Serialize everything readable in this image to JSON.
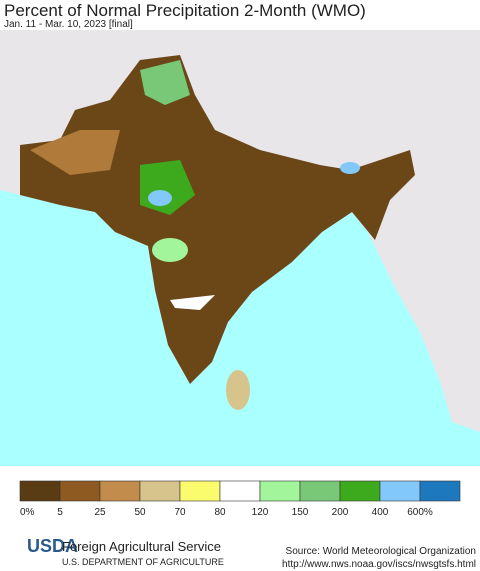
{
  "header": {
    "title": "Percent of Normal Precipitation 2-Month (WMO)",
    "subtitle": "Jan. 11 - Mar. 10, 2023 [final]"
  },
  "legend": {
    "colors": [
      "#5a3c14",
      "#8f5a22",
      "#c28c4c",
      "#d6c48c",
      "#fbfb6e",
      "#ffffff",
      "#a2f59a",
      "#78c878",
      "#3caa1c",
      "#82c8fa",
      "#1e78be"
    ],
    "labels": [
      "0%",
      "5",
      "25",
      "50",
      "70",
      "80",
      "120",
      "150",
      "200",
      "400",
      "600%"
    ]
  },
  "footer": {
    "agency": "Foreign Agricultural Service",
    "department": "U.S. DEPARTMENT OF AGRICULTURE",
    "logo": "USDA",
    "source": "Source: World Meteorological Organization",
    "url": "http://www.nws.noaa.gov/iscs/nwsgtsfs.html"
  }
}
